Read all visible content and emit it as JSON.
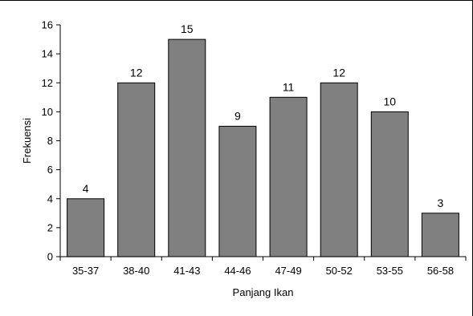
{
  "chart_data": {
    "type": "bar",
    "categories": [
      "35-37",
      "38-40",
      "41-43",
      "44-46",
      "47-49",
      "50-52",
      "53-55",
      "56-58"
    ],
    "values": [
      4,
      12,
      15,
      9,
      11,
      12,
      10,
      3
    ],
    "xlabel": "Panjang Ikan",
    "ylabel": "Frekuensi",
    "ylim": [
      0,
      16
    ],
    "yticks": [
      0,
      2,
      4,
      6,
      8,
      10,
      12,
      14,
      16
    ],
    "grid": false,
    "legend": "none",
    "data_labels": true,
    "colors": {
      "bar": "#808080",
      "bar_edge": "#000000",
      "axis": "#000000"
    }
  }
}
